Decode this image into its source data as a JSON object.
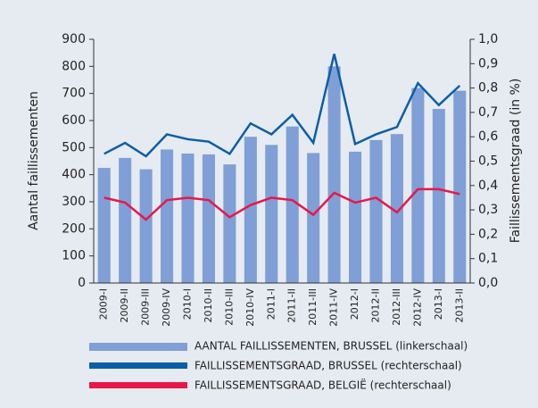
{
  "chart_data": {
    "type": "bar-line",
    "ylabel": "Aantal faillissementen",
    "y2label": "Faillissementsgraad (in %)",
    "categories": [
      "2009-I",
      "2009-II",
      "2009-III",
      "2009-IV",
      "2010-I",
      "2010-II",
      "2010-III",
      "2010-IV",
      "2011-I",
      "2011-II",
      "2011-III",
      "2011-IV",
      "2012-I",
      "2012-II",
      "2012-III",
      "2012-IV",
      "2013-I",
      "2013-II"
    ],
    "series": [
      {
        "name": "AANTAL FAILLISSEMENTEN, BRUSSEL (linkerschaal)",
        "color": "#7f9fd6",
        "kind": "bar",
        "values": [
          425,
          462,
          420,
          493,
          478,
          475,
          438,
          540,
          510,
          578,
          480,
          800,
          485,
          528,
          550,
          720,
          643,
          710
        ]
      },
      {
        "name": "FAILLISSEMENTSGRAAD, BRUSSEL (rechterschaal)",
        "color": "#0b5ea8",
        "kind": "line",
        "axis": "y2",
        "values": [
          0.53,
          0.575,
          0.52,
          0.61,
          0.59,
          0.58,
          0.53,
          0.655,
          0.61,
          0.69,
          0.575,
          0.94,
          0.57,
          0.61,
          0.64,
          0.82,
          0.73,
          0.81
        ]
      },
      {
        "name": "FAILLISSEMENTSGRAAD, BELGIË (rechterschaal)",
        "color": "#e8174a",
        "kind": "line",
        "axis": "y2",
        "values": [
          0.35,
          0.33,
          0.26,
          0.34,
          0.35,
          0.34,
          0.27,
          0.32,
          0.35,
          0.34,
          0.28,
          0.37,
          0.33,
          0.35,
          0.29,
          0.385,
          0.385,
          0.365
        ]
      }
    ],
    "ylim": [
      0,
      900
    ],
    "yticks": [
      0,
      100,
      200,
      300,
      400,
      500,
      600,
      700,
      800,
      900
    ],
    "y2lim": [
      0,
      1.0
    ],
    "y2ticks": [
      {
        "value": 0,
        "label": "0,0"
      },
      {
        "value": 0.1,
        "label": "0,1"
      },
      {
        "value": 0.2,
        "label": "0,2"
      },
      {
        "value": 0.3,
        "label": "0,3"
      },
      {
        "value": 0.4,
        "label": "0,4"
      },
      {
        "value": 0.5,
        "label": "0,5"
      },
      {
        "value": 0.6,
        "label": "0,6"
      },
      {
        "value": 0.7,
        "label": "0,7"
      },
      {
        "value": 0.8,
        "label": "0,8"
      },
      {
        "value": 0.9,
        "label": "0,9"
      },
      {
        "value": 1.0,
        "label": "1,0"
      }
    ],
    "grid": false
  }
}
